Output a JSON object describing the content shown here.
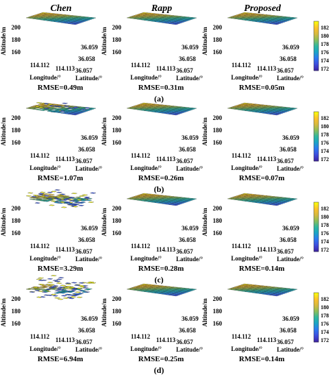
{
  "columns": [
    "Chen",
    "Rapp",
    "Proposed"
  ],
  "row_labels": [
    "(a)",
    "(b)",
    "(c)",
    "(d)"
  ],
  "rmse": [
    [
      "RMSE=0.49m",
      "RMSE=0.31m",
      "RMSE=0.05m"
    ],
    [
      "RMSE=1.07m",
      "RMSE=0.26m",
      "RMSE=0.07m"
    ],
    [
      "RMSE=3.29m",
      "RMSE=0.28m",
      "RMSE=0.14m"
    ],
    [
      "RMSE=6.94m",
      "RMSE=0.25m",
      "RMSE=0.14m"
    ]
  ],
  "axes": {
    "zlabel": "Altitude/m",
    "xlabel": "Longitude/°",
    "ylabel": "Latitude/°",
    "z_ticks": [
      "200",
      "180",
      "160"
    ],
    "x_ticks": [
      "114.112",
      "114.113"
    ],
    "y_ticks": [
      "36.059",
      "36.058",
      "36.057"
    ]
  },
  "colorbar": {
    "ticks": [
      "182",
      "180",
      "178",
      "176",
      "174",
      "172"
    ],
    "colors": [
      "#f9fb0e",
      "#fcc12c",
      "#d7ba3e",
      "#8bbe5a",
      "#2fb89e",
      "#1aa5c6",
      "#2c7bf0",
      "#3d4fe0",
      "#3e26a8"
    ]
  },
  "noise_level": [
    [
      "low",
      "low",
      "low"
    ],
    [
      "medium",
      "low",
      "low"
    ],
    [
      "high",
      "low",
      "low"
    ],
    [
      "extreme",
      "low",
      "low"
    ]
  ],
  "chart_data": {
    "type": "heatmap",
    "x": {
      "label": "Longitude/°",
      "ticks": [
        114.112,
        114.113
      ]
    },
    "y": {
      "label": "Latitude/°",
      "ticks": [
        36.057,
        36.058,
        36.059
      ]
    },
    "z": {
      "label": "Altitude/m",
      "ticks": [
        160,
        180,
        200
      ]
    },
    "colorbar_ticks": [
      172,
      174,
      176,
      178,
      180,
      182
    ],
    "rmse_m": [
      [
        0.49,
        0.31,
        0.05
      ],
      [
        1.07,
        0.26,
        0.07
      ],
      [
        3.29,
        0.28,
        0.14
      ],
      [
        6.94,
        0.25,
        0.14
      ]
    ]
  }
}
